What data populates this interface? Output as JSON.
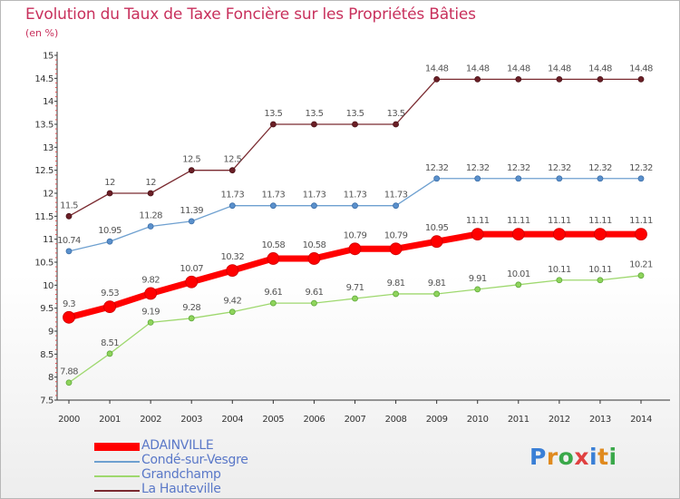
{
  "title": "Evolution du Taux de Taxe Foncière sur les Propriétés Bâties",
  "unit_label": "(en %)",
  "brand": {
    "text": "Proxiti",
    "colors": [
      "#3a7fd6",
      "#e08a1e",
      "#3aa84a",
      "#e04040",
      "#3a7fd6",
      "#e08a1e",
      "#3aa84a"
    ]
  },
  "chart_data": {
    "type": "line",
    "x": [
      2000,
      2001,
      2002,
      2003,
      2004,
      2005,
      2006,
      2007,
      2008,
      2009,
      2010,
      2011,
      2012,
      2013,
      2014
    ],
    "ylim": [
      7.5,
      15
    ],
    "yticks": [
      7.5,
      8,
      8.5,
      9,
      9.5,
      10,
      10.5,
      11,
      11.5,
      12,
      12.5,
      13,
      13.5,
      14,
      14.5,
      15
    ],
    "ytick_labels": [
      "7.5",
      "8",
      "8.5",
      "9",
      "9.5",
      "10",
      "10.5",
      "11",
      "11.5",
      "12",
      "12.5",
      "13",
      "13.5",
      "14",
      "14.5",
      "15"
    ],
    "grid": false,
    "legend_position": "bottom-left",
    "series": [
      {
        "name": "ADAINVILLE",
        "color": "#ff0000",
        "values": [
          9.3,
          9.53,
          9.82,
          10.07,
          10.32,
          10.58,
          10.58,
          10.79,
          10.79,
          10.95,
          11.11,
          11.11,
          11.11,
          11.11,
          11.11
        ],
        "labels": [
          "9.3",
          "9.53",
          "9.82",
          "10.07",
          "10.32",
          "10.58",
          "10.58",
          "10.79",
          "10.79",
          "10.95",
          "11.11",
          "11.11",
          "11.11",
          "11.11",
          "11.11"
        ]
      },
      {
        "name": "Condé-sur-Vesgre",
        "color": "#6ea0d0",
        "values": [
          10.74,
          10.95,
          11.28,
          11.39,
          11.73,
          11.73,
          11.73,
          11.73,
          11.73,
          12.32,
          12.32,
          12.32,
          12.32,
          12.32,
          12.32
        ],
        "labels": [
          "10.74",
          "10.95",
          "11.28",
          "11.39",
          "11.73",
          "11.73",
          "11.73",
          "11.73",
          "11.73",
          "12.32",
          "12.32",
          "12.32",
          "12.32",
          "12.32",
          "12.32"
        ]
      },
      {
        "name": "Grandchamp",
        "color": "#9ed86e",
        "values": [
          7.88,
          8.51,
          9.19,
          9.28,
          9.42,
          9.61,
          9.61,
          9.71,
          9.81,
          9.81,
          9.91,
          10.01,
          10.11,
          10.11,
          10.21
        ],
        "labels": [
          "7.88",
          "8.51",
          "9.19",
          "9.28",
          "9.42",
          "9.61",
          "9.61",
          "9.71",
          "9.81",
          "9.81",
          "9.91",
          "10.01",
          "10.11",
          "10.11",
          "10.21"
        ]
      },
      {
        "name": "La Hauteville",
        "color": "#7a2a30",
        "values": [
          11.5,
          12,
          12,
          12.5,
          12.5,
          13.5,
          13.5,
          13.5,
          13.5,
          14.48,
          14.48,
          14.48,
          14.48,
          14.48,
          14.48
        ],
        "labels": [
          "11.5",
          "12",
          "12",
          "12.5",
          "12.5",
          "13.5",
          "13.5",
          "13.5",
          "13.5",
          "14.48",
          "14.48",
          "14.48",
          "14.48",
          "14.48",
          "14.48"
        ]
      }
    ]
  }
}
